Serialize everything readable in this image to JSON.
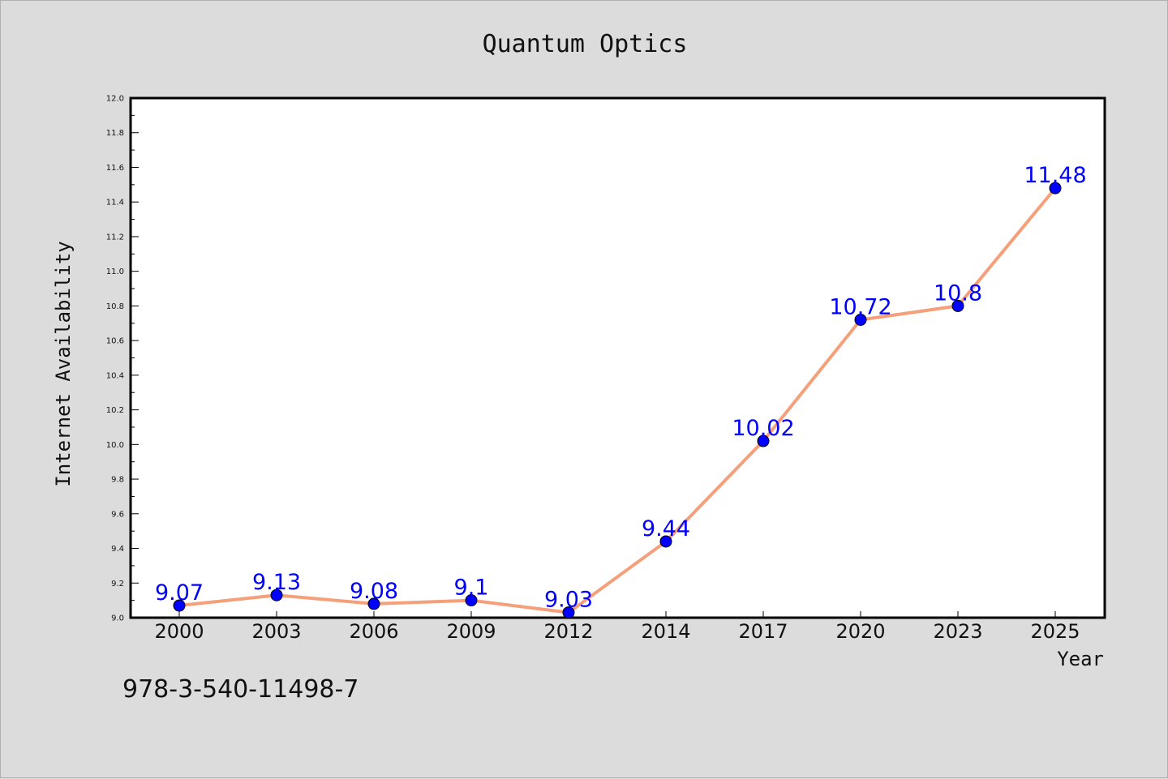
{
  "isbn_text": "978-3-540-11498-7",
  "colors": {
    "background": "#dcdcdc",
    "plot_area": "#ffffff",
    "line": "#f5a07a",
    "marker": "#0000ff",
    "label": "#0000ff"
  },
  "chart_data": {
    "type": "line",
    "title": "Quantum Optics",
    "xlabel": "Year",
    "ylabel": "Internet Availability",
    "categories": [
      "2000",
      "2003",
      "2006",
      "2009",
      "2012",
      "2014",
      "2017",
      "2020",
      "2023",
      "2025"
    ],
    "series": [
      {
        "values": [
          9.07,
          9.13,
          9.08,
          9.1,
          9.03,
          9.44,
          10.02,
          10.72,
          10.8,
          11.48
        ],
        "data_labels": [
          "9.07",
          "9.13",
          "9.08",
          "9.1",
          "9.03",
          "9.44",
          "10.02",
          "10.72",
          "10.8",
          "11.48"
        ]
      }
    ],
    "ylim": [
      9.0,
      12.0
    ],
    "yticks": [
      "9.0",
      "9.2",
      "9.4",
      "9.6",
      "9.8",
      "10.0",
      "10.2",
      "10.4",
      "10.6",
      "10.8",
      "11.0",
      "11.2",
      "11.4",
      "11.6",
      "11.8",
      "12.0"
    ],
    "grid": false,
    "legend": "none"
  }
}
